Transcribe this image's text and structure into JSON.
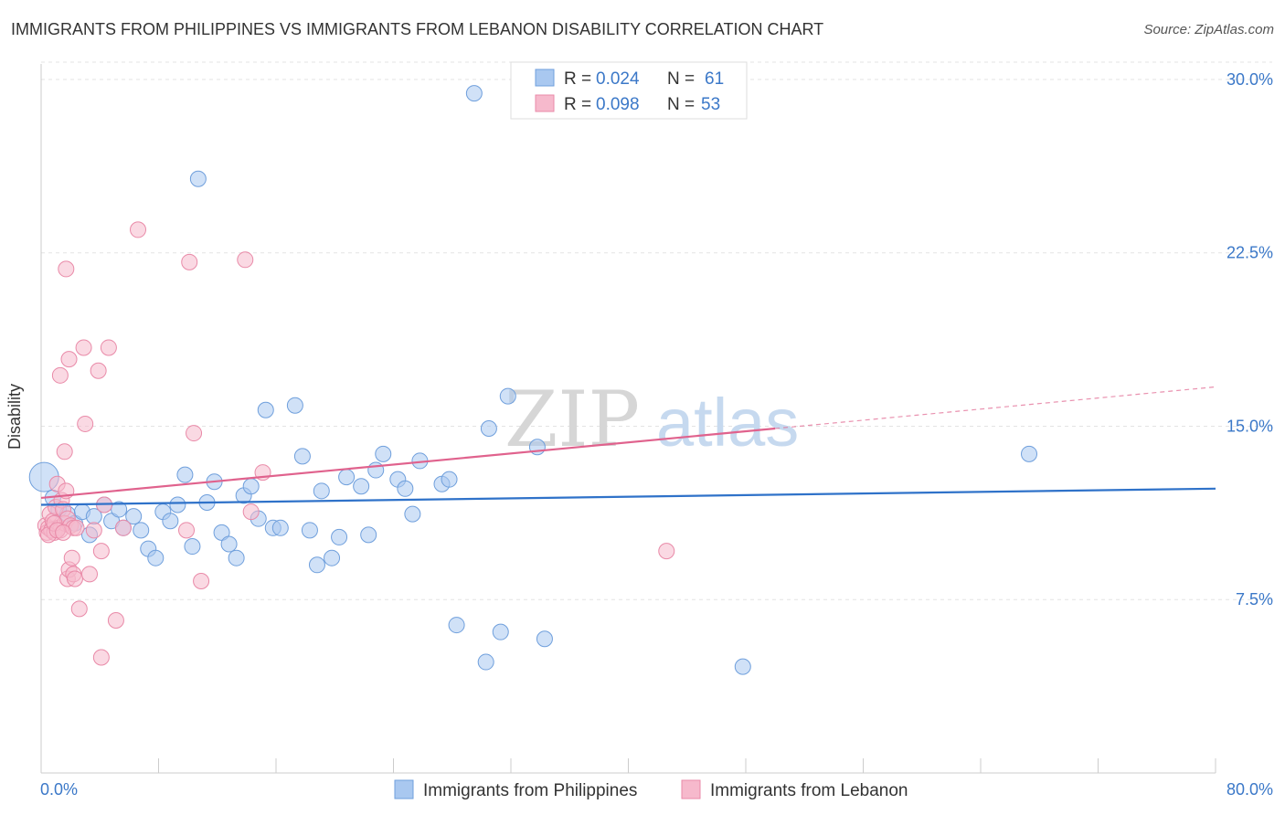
{
  "title": "IMMIGRANTS FROM PHILIPPINES VS IMMIGRANTS FROM LEBANON DISABILITY CORRELATION CHART",
  "source": "Source: ZipAtlas.com",
  "watermark": {
    "zip": "ZIP",
    "atlas": "atlas"
  },
  "colors": {
    "philippines_fill": "#a9c8f0",
    "philippines_stroke": "#6f9fdc",
    "philippines_line": "#2f72c9",
    "lebanon_fill": "#f6b9cc",
    "lebanon_stroke": "#e98aa8",
    "lebanon_line": "#e0628d",
    "axis_text": "#3b78c8"
  },
  "chart_data": {
    "type": "scatter",
    "xlabel": "",
    "ylabel": "Disability",
    "xlim": [
      0,
      80
    ],
    "ylim": [
      0,
      31.5
    ],
    "x_ticks": [
      0,
      80
    ],
    "x_tick_labels": [
      "0.0%",
      "80.0%"
    ],
    "y_ticks": [
      7.5,
      15.0,
      22.5,
      30.0
    ],
    "y_tick_labels": [
      "7.5%",
      "15.0%",
      "22.5%",
      "30.0%"
    ],
    "grid": "horizontal-dashed",
    "legend_position": "top-center",
    "stats_legend": [
      {
        "r_label": "R = ",
        "r_value": "0.024",
        "n_label": "N = ",
        "n_value": "61"
      },
      {
        "r_label": "R = ",
        "r_value": "0.098",
        "n_label": "N = ",
        "n_value": "53"
      }
    ],
    "series": [
      {
        "name": "Immigrants from Philippines",
        "trend": {
          "x": [
            0,
            80
          ],
          "y": [
            11.6,
            12.3
          ]
        },
        "points": [
          [
            29.5,
            29.4
          ],
          [
            10.7,
            25.7
          ],
          [
            0.2,
            12.8
          ],
          [
            1.2,
            11.4
          ],
          [
            0.8,
            11.9
          ],
          [
            1.8,
            11.2
          ],
          [
            2.3,
            10.8
          ],
          [
            2.8,
            11.3
          ],
          [
            3.3,
            10.3
          ],
          [
            3.6,
            11.1
          ],
          [
            4.3,
            11.6
          ],
          [
            4.8,
            10.9
          ],
          [
            5.3,
            11.4
          ],
          [
            5.6,
            10.6
          ],
          [
            6.3,
            11.1
          ],
          [
            6.8,
            10.5
          ],
          [
            7.3,
            9.7
          ],
          [
            7.8,
            9.3
          ],
          [
            8.3,
            11.3
          ],
          [
            8.8,
            10.9
          ],
          [
            9.3,
            11.6
          ],
          [
            9.8,
            12.9
          ],
          [
            10.3,
            9.8
          ],
          [
            11.3,
            11.7
          ],
          [
            11.8,
            12.6
          ],
          [
            12.3,
            10.4
          ],
          [
            12.8,
            9.9
          ],
          [
            13.3,
            9.3
          ],
          [
            13.8,
            12.0
          ],
          [
            14.3,
            12.4
          ],
          [
            14.8,
            11.0
          ],
          [
            15.3,
            15.7
          ],
          [
            15.8,
            10.6
          ],
          [
            16.3,
            10.6
          ],
          [
            17.3,
            15.9
          ],
          [
            17.8,
            13.7
          ],
          [
            18.3,
            10.5
          ],
          [
            18.8,
            9.0
          ],
          [
            19.1,
            12.2
          ],
          [
            19.8,
            9.3
          ],
          [
            20.3,
            10.2
          ],
          [
            20.8,
            12.8
          ],
          [
            21.8,
            12.4
          ],
          [
            22.3,
            10.3
          ],
          [
            22.8,
            13.1
          ],
          [
            23.3,
            13.8
          ],
          [
            24.3,
            12.7
          ],
          [
            24.8,
            12.3
          ],
          [
            25.3,
            11.2
          ],
          [
            25.8,
            13.5
          ],
          [
            27.3,
            12.5
          ],
          [
            27.8,
            12.7
          ],
          [
            28.3,
            6.4
          ],
          [
            30.3,
            4.8
          ],
          [
            30.5,
            14.9
          ],
          [
            31.3,
            6.1
          ],
          [
            31.8,
            16.3
          ],
          [
            33.8,
            14.1
          ],
          [
            34.3,
            5.8
          ],
          [
            47.8,
            4.6
          ],
          [
            67.3,
            13.8
          ]
        ]
      },
      {
        "name": "Immigrants from Lebanon",
        "trend": {
          "x": [
            0,
            50
          ],
          "y": [
            11.9,
            14.9
          ]
        },
        "trend_extension": {
          "x": [
            50,
            80
          ],
          "y": [
            14.9,
            16.7
          ]
        },
        "points": [
          [
            0.3,
            10.7
          ],
          [
            0.4,
            10.4
          ],
          [
            0.5,
            10.6
          ],
          [
            0.6,
            11.2
          ],
          [
            0.7,
            10.5
          ],
          [
            0.8,
            10.9
          ],
          [
            0.9,
            10.4
          ],
          [
            1.0,
            11.5
          ],
          [
            1.1,
            12.5
          ],
          [
            1.2,
            10.6
          ],
          [
            1.3,
            10.5
          ],
          [
            1.4,
            11.8
          ],
          [
            1.5,
            11.4
          ],
          [
            1.6,
            10.8
          ],
          [
            1.7,
            12.2
          ],
          [
            1.8,
            11.0
          ],
          [
            2.0,
            10.7
          ],
          [
            2.2,
            10.6
          ],
          [
            1.3,
            17.2
          ],
          [
            1.6,
            13.9
          ],
          [
            1.8,
            8.4
          ],
          [
            1.9,
            8.8
          ],
          [
            1.7,
            21.8
          ],
          [
            1.9,
            17.9
          ],
          [
            2.1,
            9.3
          ],
          [
            2.2,
            8.6
          ],
          [
            2.3,
            8.4
          ],
          [
            2.6,
            7.1
          ],
          [
            2.9,
            18.4
          ],
          [
            3.0,
            15.1
          ],
          [
            3.3,
            8.6
          ],
          [
            3.6,
            10.5
          ],
          [
            3.9,
            17.4
          ],
          [
            4.1,
            9.6
          ],
          [
            4.3,
            11.6
          ],
          [
            4.6,
            18.4
          ],
          [
            4.1,
            5.0
          ],
          [
            5.1,
            6.6
          ],
          [
            5.6,
            10.6
          ],
          [
            6.6,
            23.5
          ],
          [
            9.9,
            10.5
          ],
          [
            10.1,
            22.1
          ],
          [
            10.4,
            14.7
          ],
          [
            10.9,
            8.3
          ],
          [
            13.9,
            22.2
          ],
          [
            14.3,
            11.3
          ],
          [
            15.1,
            13.0
          ],
          [
            42.6,
            9.6
          ],
          [
            0.5,
            10.3
          ],
          [
            0.9,
            10.8
          ],
          [
            1.1,
            10.5
          ],
          [
            2.4,
            10.6
          ],
          [
            1.5,
            10.4
          ]
        ]
      }
    ]
  }
}
